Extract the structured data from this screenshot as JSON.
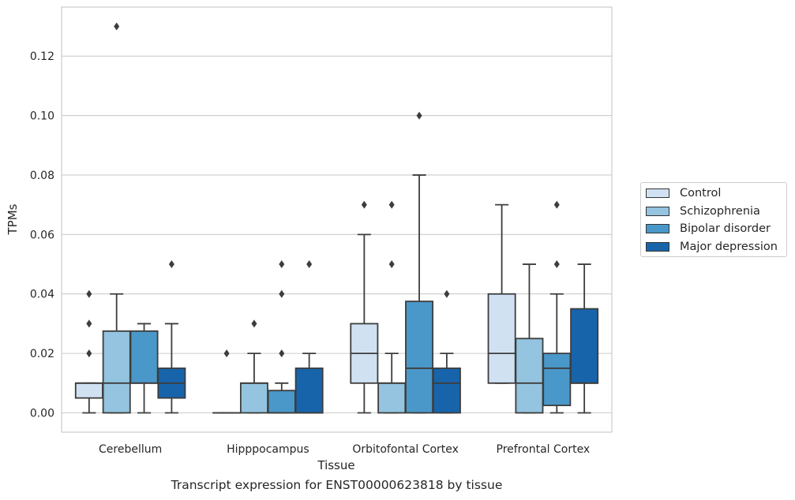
{
  "caption": "Transcript expression for ENST00000623818 by tissue",
  "legend": {
    "items": [
      {
        "label": "Control",
        "color": "#d0e1f2"
      },
      {
        "label": "Schizophrenia",
        "color": "#94c4df"
      },
      {
        "label": "Bipolar disorder",
        "color": "#4a98c9"
      },
      {
        "label": "Major depression",
        "color": "#1764ab"
      }
    ]
  },
  "chart_data": {
    "type": "box",
    "xlabel": "Tissue",
    "ylabel": "TPMs",
    "categories": [
      "Cerebellum",
      "Hipppocampus",
      "Orbitofontal Cortex",
      "Prefrontal Cortex"
    ],
    "ylim": [
      -0.0065,
      0.1365
    ],
    "yticks": [
      0.0,
      0.02,
      0.04,
      0.06,
      0.08,
      0.1,
      0.12
    ],
    "ytick_labels": [
      "0.00",
      "0.02",
      "0.04",
      "0.06",
      "0.08",
      "0.10",
      "0.12"
    ],
    "grid": "horizontal",
    "legend_position": "right",
    "series": [
      {
        "name": "Control",
        "color": "#d0e1f2",
        "boxes": [
          {
            "whisker_low": 0.0,
            "q1": 0.005,
            "median": 0.01,
            "q3": 0.01,
            "whisker_high": 0.01,
            "outliers": [
              0.02,
              0.03,
              0.04
            ]
          },
          {
            "whisker_low": 0.0,
            "q1": 0.0,
            "median": 0.0,
            "q3": 0.0,
            "whisker_high": 0.0,
            "outliers": [
              0.02
            ]
          },
          {
            "whisker_low": 0.0,
            "q1": 0.01,
            "median": 0.02,
            "q3": 0.03,
            "whisker_high": 0.06,
            "outliers": [
              0.07
            ]
          },
          {
            "whisker_low": 0.01,
            "q1": 0.01,
            "median": 0.02,
            "q3": 0.04,
            "whisker_high": 0.07,
            "outliers": []
          }
        ]
      },
      {
        "name": "Schizophrenia",
        "color": "#94c4df",
        "boxes": [
          {
            "whisker_low": 0.0,
            "q1": 0.0,
            "median": 0.01,
            "q3": 0.0275,
            "whisker_high": 0.04,
            "outliers": [
              0.13
            ]
          },
          {
            "whisker_low": 0.0,
            "q1": 0.0,
            "median": 0.01,
            "q3": 0.01,
            "whisker_high": 0.02,
            "outliers": [
              0.03
            ]
          },
          {
            "whisker_low": 0.0,
            "q1": 0.0,
            "median": 0.01,
            "q3": 0.01,
            "whisker_high": 0.02,
            "outliers": [
              0.05,
              0.07
            ]
          },
          {
            "whisker_low": 0.0,
            "q1": 0.0,
            "median": 0.01,
            "q3": 0.025,
            "whisker_high": 0.05,
            "outliers": []
          }
        ]
      },
      {
        "name": "Bipolar disorder",
        "color": "#4a98c9",
        "boxes": [
          {
            "whisker_low": 0.0,
            "q1": 0.01,
            "median": 0.01,
            "q3": 0.0275,
            "whisker_high": 0.03,
            "outliers": []
          },
          {
            "whisker_low": 0.0,
            "q1": 0.0,
            "median": 0.0,
            "q3": 0.0075,
            "whisker_high": 0.01,
            "outliers": [
              0.02,
              0.04,
              0.05
            ]
          },
          {
            "whisker_low": 0.0,
            "q1": 0.0,
            "median": 0.015,
            "q3": 0.0375,
            "whisker_high": 0.08,
            "outliers": [
              0.1
            ]
          },
          {
            "whisker_low": 0.0,
            "q1": 0.0025,
            "median": 0.015,
            "q3": 0.02,
            "whisker_high": 0.04,
            "outliers": [
              0.05,
              0.07
            ]
          }
        ]
      },
      {
        "name": "Major depression",
        "color": "#1764ab",
        "boxes": [
          {
            "whisker_low": 0.0,
            "q1": 0.005,
            "median": 0.01,
            "q3": 0.015,
            "whisker_high": 0.03,
            "outliers": [
              0.05
            ]
          },
          {
            "whisker_low": 0.0,
            "q1": 0.0,
            "median": 0.0,
            "q3": 0.015,
            "whisker_high": 0.02,
            "outliers": [
              0.05
            ]
          },
          {
            "whisker_low": 0.0,
            "q1": 0.0,
            "median": 0.01,
            "q3": 0.015,
            "whisker_high": 0.02,
            "outliers": [
              0.04
            ]
          },
          {
            "whisker_low": 0.0,
            "q1": 0.01,
            "median": 0.01,
            "q3": 0.035,
            "whisker_high": 0.05,
            "outliers": []
          }
        ]
      }
    ]
  }
}
